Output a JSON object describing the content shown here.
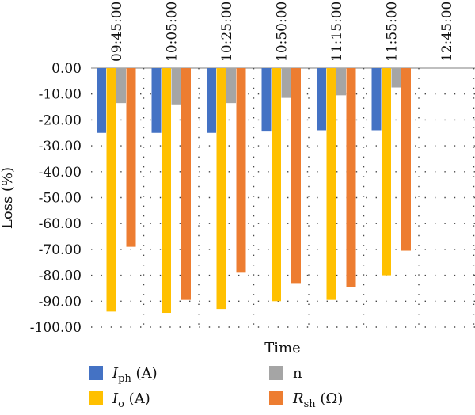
{
  "chart_data": {
    "type": "bar",
    "title": "",
    "xlabel": "Time",
    "ylabel": "Loss (%)",
    "ylim": [
      -100,
      0
    ],
    "y_tick_step": 10,
    "y_tick_labels": [
      "0.00",
      "-10.00",
      "-20.00",
      "-30.00",
      "-40.00",
      "-50.00",
      "-60.00",
      "-70.00",
      "-80.00",
      "-90.00",
      "-100.00"
    ],
    "categories": [
      "09:45:00",
      "10:05:00",
      "10:25:00",
      "10:50:00",
      "11:15:00",
      "11:55:00",
      "12:45:00"
    ],
    "grid": "dotted",
    "legend_position": "bottom",
    "series": [
      {
        "name": "I_ph (A)",
        "label_main": "I",
        "label_sub": "ph",
        "label_tail": " (A)",
        "color": "#4472C4",
        "values": [
          -25,
          -25,
          -25,
          -24.5,
          -24,
          -24,
          null
        ]
      },
      {
        "name": "I_o (A)",
        "label_main": "I",
        "label_sub": "o",
        "label_tail": " (A)",
        "color": "#FFC000",
        "values": [
          -94,
          -94.5,
          -93,
          -90,
          -89.5,
          -80,
          null
        ]
      },
      {
        "name": "n",
        "label_main": "n",
        "label_sub": "",
        "label_tail": "",
        "color": "#A5A5A5",
        "values": [
          -13.5,
          -14,
          -13.5,
          -11.5,
          -10.5,
          -7.5,
          null
        ]
      },
      {
        "name": "R_sh (Ω)",
        "label_main": "R",
        "label_sub": "sh",
        "label_tail": " (Ω)",
        "color": "#ED7D31",
        "values": [
          -69,
          -89.5,
          -79,
          -83,
          -84.5,
          -70.5,
          null
        ]
      }
    ]
  }
}
